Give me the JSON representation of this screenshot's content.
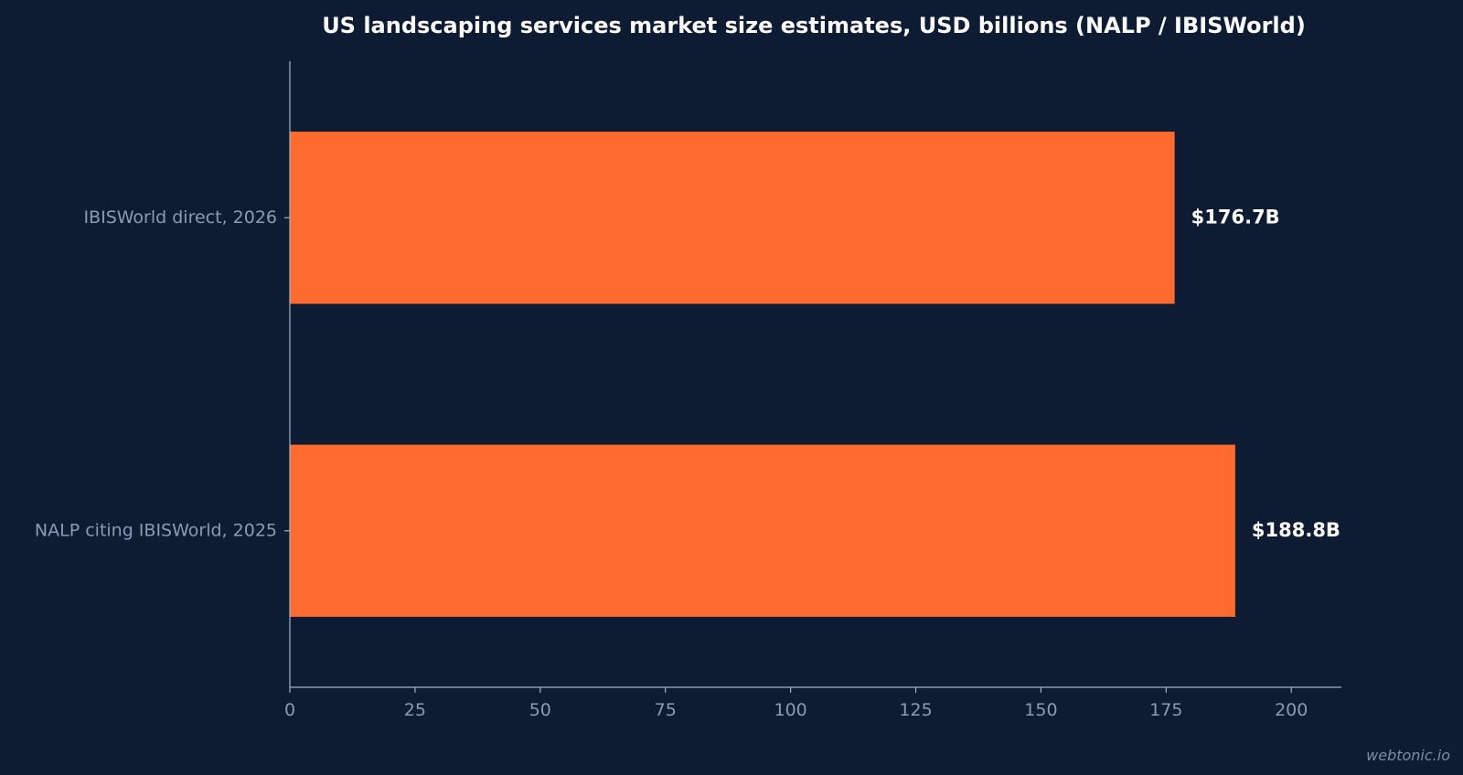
{
  "chart_data": {
    "type": "bar",
    "orientation": "horizontal",
    "title": "US landscaping services market size estimates, USD billions (NALP / IBISWorld)",
    "categories": [
      "IBISWorld direct, 2026",
      "NALP citing IBISWorld, 2025"
    ],
    "values": [
      176.7,
      188.8
    ],
    "data_labels": [
      "$176.7B",
      "$188.8B"
    ],
    "xlabel": "",
    "ylabel": "",
    "xlim": [
      0,
      210
    ],
    "x_ticks": [
      0,
      25,
      50,
      75,
      100,
      125,
      150,
      175,
      200
    ],
    "grid": false,
    "legend": "none"
  },
  "colors": {
    "background": "#0d1b33",
    "bar": "#ff6b2f",
    "axis": "#a6b3c7",
    "label": "#8b9bb3",
    "title": "#ffffff"
  },
  "watermark": "webtonic.io"
}
